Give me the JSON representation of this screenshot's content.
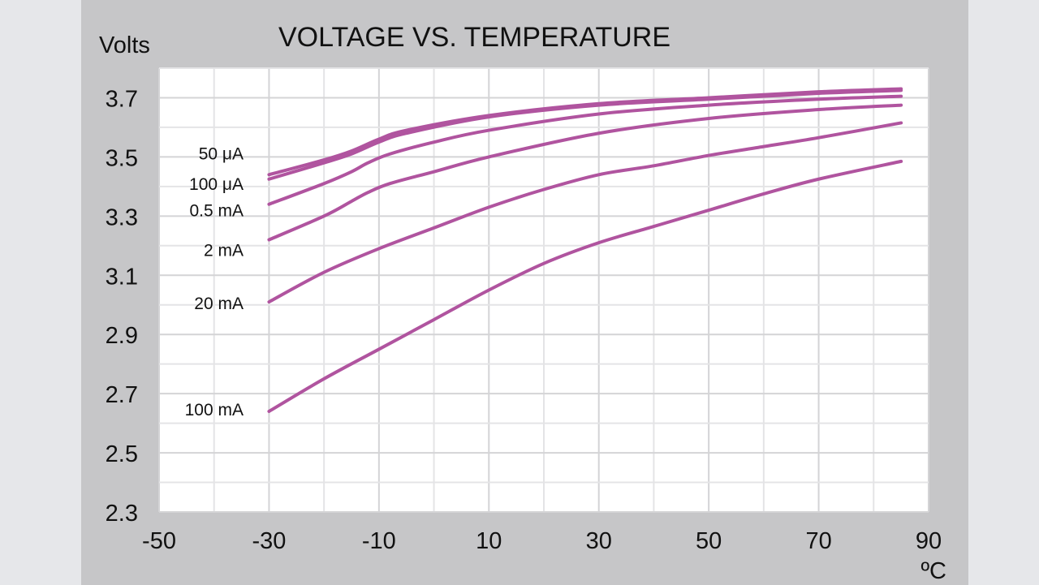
{
  "chart_data": {
    "type": "line",
    "title": "VOLTAGE VS. TEMPERATURE",
    "ylabel": "Volts",
    "xlabel": "ºC",
    "xlim": [
      -50,
      90
    ],
    "ylim": [
      2.3,
      3.8
    ],
    "grid": true,
    "xticks": [
      "-50",
      "-30",
      "-10",
      "10",
      "30",
      "50",
      "70",
      "90"
    ],
    "yticks": [
      "2.3",
      "2.5",
      "2.7",
      "2.9",
      "3.1",
      "3.3",
      "3.5",
      "3.7"
    ],
    "line_color": "#b0549f",
    "series": [
      {
        "name": "50 μA",
        "x": [
          -30,
          -20,
          -15,
          -10,
          -5,
          10,
          30,
          50,
          70,
          85
        ],
        "y": [
          3.44,
          3.49,
          3.52,
          3.56,
          3.59,
          3.64,
          3.68,
          3.7,
          3.72,
          3.73
        ]
      },
      {
        "name": "100 μA",
        "x": [
          -30,
          -20,
          -15,
          -10,
          -5,
          10,
          30,
          50,
          70,
          85
        ],
        "y": [
          3.425,
          3.48,
          3.51,
          3.55,
          3.58,
          3.635,
          3.675,
          3.695,
          3.715,
          3.725
        ]
      },
      {
        "name": "0.5 mA",
        "x": [
          -30,
          -20,
          -15,
          -12,
          -8,
          0,
          10,
          30,
          50,
          70,
          85
        ],
        "y": [
          3.34,
          3.41,
          3.45,
          3.48,
          3.51,
          3.55,
          3.59,
          3.645,
          3.675,
          3.695,
          3.705
        ]
      },
      {
        "name": "2 mA",
        "x": [
          -30,
          -20,
          -15,
          -12,
          -8,
          0,
          10,
          30,
          50,
          70,
          85
        ],
        "y": [
          3.22,
          3.3,
          3.35,
          3.38,
          3.41,
          3.45,
          3.5,
          3.58,
          3.63,
          3.66,
          3.675
        ]
      },
      {
        "name": "20 mA",
        "x": [
          -30,
          -20,
          -10,
          0,
          10,
          20,
          30,
          40,
          50,
          60,
          70,
          85
        ],
        "y": [
          3.01,
          3.11,
          3.19,
          3.26,
          3.33,
          3.39,
          3.44,
          3.47,
          3.505,
          3.535,
          3.565,
          3.615
        ]
      },
      {
        "name": "100 mA",
        "x": [
          -30,
          -20,
          -10,
          0,
          10,
          20,
          30,
          40,
          50,
          60,
          70,
          85
        ],
        "y": [
          2.64,
          2.75,
          2.85,
          2.95,
          3.05,
          3.14,
          3.21,
          3.265,
          3.32,
          3.375,
          3.425,
          3.485
        ]
      }
    ]
  }
}
